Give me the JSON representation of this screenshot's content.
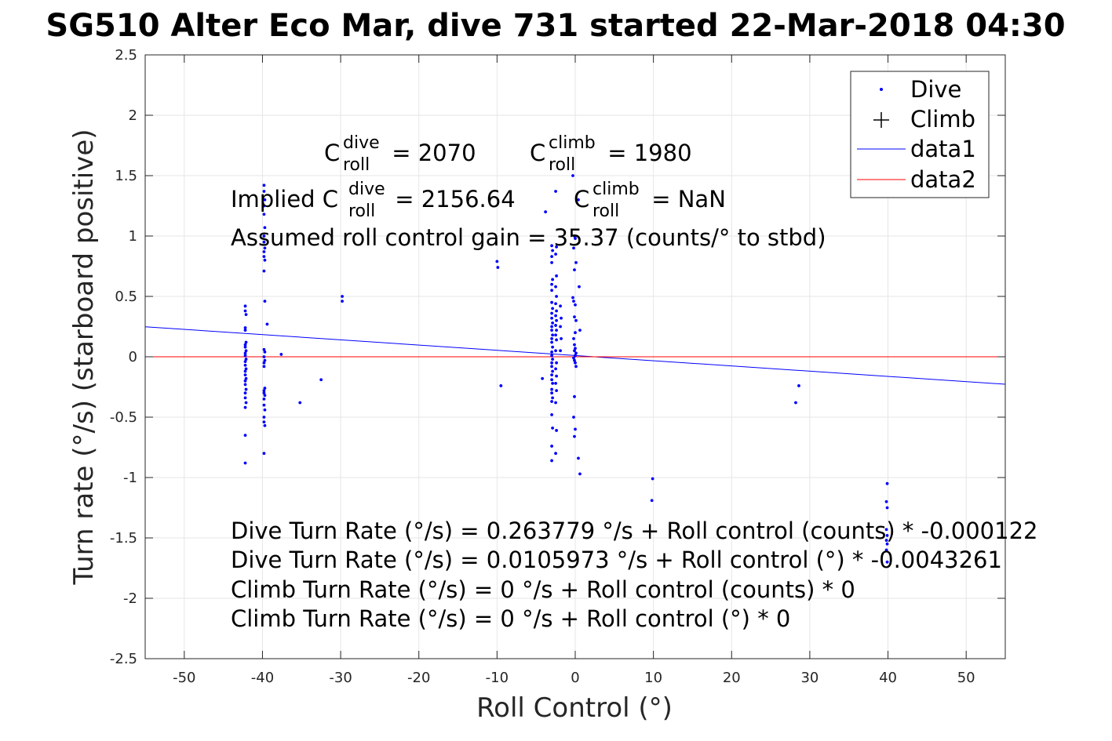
{
  "chart_data": {
    "type": "scatter",
    "title": "SG510 Alter Eco Mar, dive 731 started 22-Mar-2018 04:30",
    "xlabel": "Roll Control (°)",
    "ylabel": "Turn rate (°/s) (starboard positive)",
    "xlim": [
      -55,
      55
    ],
    "ylim": [
      -2.5,
      2.5
    ],
    "xticks": [
      -50,
      -40,
      -30,
      -20,
      -10,
      0,
      10,
      20,
      30,
      40,
      50
    ],
    "yticks": [
      -2.5,
      -2,
      -1.5,
      -1,
      -0.5,
      0,
      0.5,
      1,
      1.5,
      2,
      2.5
    ],
    "grid": true,
    "legend": {
      "placement": "top-right",
      "entries": [
        "Dive",
        "Climb",
        "data1",
        "data2"
      ]
    },
    "colors": {
      "dive": "#0000ff",
      "climb": "#000000",
      "data1": "#0000ff",
      "data2": "#ff0000",
      "grid": "#e6e6e6",
      "axis": "#262626"
    },
    "series": [
      {
        "name": "Dive",
        "marker": "dot",
        "points": [
          [
            -42.2,
            0.42
          ],
          [
            -42.2,
            0.38
          ],
          [
            -42.1,
            0.35
          ],
          [
            -42.2,
            0.24
          ],
          [
            -42.2,
            0.22
          ],
          [
            -42.1,
            0.12
          ],
          [
            -42.2,
            0.1
          ],
          [
            -42.2,
            0.08
          ],
          [
            -42.1,
            0.05
          ],
          [
            -42.2,
            0.03
          ],
          [
            -42.2,
            0.01
          ],
          [
            -42.1,
            -0.02
          ],
          [
            -42.2,
            -0.04
          ],
          [
            -42.2,
            -0.07
          ],
          [
            -42.1,
            -0.1
          ],
          [
            -42.2,
            -0.12
          ],
          [
            -42.2,
            -0.15
          ],
          [
            -42.1,
            -0.18
          ],
          [
            -42.2,
            -0.2
          ],
          [
            -42.2,
            -0.23
          ],
          [
            -42.1,
            -0.27
          ],
          [
            -42.2,
            -0.3
          ],
          [
            -42.2,
            -0.34
          ],
          [
            -42.1,
            -0.38
          ],
          [
            -42.2,
            -0.42
          ],
          [
            -42.2,
            -0.65
          ],
          [
            -42.2,
            -0.88
          ],
          [
            -39.8,
            1.42
          ],
          [
            -39.8,
            1.37
          ],
          [
            -39.7,
            1.3
          ],
          [
            -39.8,
            1.25
          ],
          [
            -39.8,
            1.18
          ],
          [
            -39.7,
            1.07
          ],
          [
            -39.8,
            1.0
          ],
          [
            -39.8,
            0.95
          ],
          [
            -39.7,
            0.9
          ],
          [
            -39.8,
            0.87
          ],
          [
            -39.8,
            0.83
          ],
          [
            -39.7,
            0.8
          ],
          [
            -39.8,
            0.71
          ],
          [
            -39.7,
            0.46
          ],
          [
            -39.4,
            0.27
          ],
          [
            -39.8,
            0.06
          ],
          [
            -39.7,
            0.04
          ],
          [
            -39.8,
            0.0
          ],
          [
            -39.7,
            -0.03
          ],
          [
            -39.8,
            -0.05
          ],
          [
            -39.8,
            -0.08
          ],
          [
            -39.7,
            -0.26
          ],
          [
            -39.8,
            -0.28
          ],
          [
            -39.8,
            -0.3
          ],
          [
            -39.7,
            -0.32
          ],
          [
            -39.8,
            -0.35
          ],
          [
            -39.8,
            -0.4
          ],
          [
            -39.7,
            -0.44
          ],
          [
            -39.8,
            -0.5
          ],
          [
            -39.8,
            -0.54
          ],
          [
            -39.7,
            -0.57
          ],
          [
            -39.8,
            -0.8
          ],
          [
            -37.6,
            0.02
          ],
          [
            -35.2,
            -0.38
          ],
          [
            -32.5,
            -0.19
          ],
          [
            -29.8,
            0.5
          ],
          [
            -29.8,
            0.46
          ],
          [
            -10.0,
            0.79
          ],
          [
            -9.9,
            0.74
          ],
          [
            -9.5,
            -0.24
          ],
          [
            -4.2,
            -0.18
          ],
          [
            -3.8,
            1.2
          ],
          [
            -3.0,
            0.92
          ],
          [
            -2.9,
            0.88
          ],
          [
            -3.0,
            0.83
          ],
          [
            -3.0,
            0.78
          ],
          [
            -2.9,
            0.64
          ],
          [
            -3.0,
            0.6
          ],
          [
            -3.0,
            0.55
          ],
          [
            -3.0,
            0.45
          ],
          [
            -2.9,
            0.4
          ],
          [
            -3.0,
            0.36
          ],
          [
            -3.0,
            0.32
          ],
          [
            -2.9,
            0.28
          ],
          [
            -3.0,
            0.25
          ],
          [
            -3.0,
            0.22
          ],
          [
            -2.9,
            0.18
          ],
          [
            -3.0,
            0.15
          ],
          [
            -3.0,
            0.12
          ],
          [
            -2.9,
            0.08
          ],
          [
            -3.0,
            0.04
          ],
          [
            -3.0,
            0.01
          ],
          [
            -2.9,
            -0.02
          ],
          [
            -3.0,
            -0.05
          ],
          [
            -3.0,
            -0.08
          ],
          [
            -2.9,
            -0.12
          ],
          [
            -3.0,
            -0.15
          ],
          [
            -3.0,
            -0.19
          ],
          [
            -2.9,
            -0.22
          ],
          [
            -3.0,
            -0.27
          ],
          [
            -3.0,
            -0.3
          ],
          [
            -2.9,
            -0.34
          ],
          [
            -3.0,
            -0.37
          ],
          [
            -3.0,
            -0.48
          ],
          [
            -2.9,
            -0.59
          ],
          [
            -3.0,
            -0.74
          ],
          [
            -3.0,
            -0.86
          ],
          [
            -2.5,
            1.37
          ],
          [
            -2.4,
            0.91
          ],
          [
            -2.5,
            0.85
          ],
          [
            -2.4,
            0.67
          ],
          [
            -2.5,
            0.58
          ],
          [
            -2.4,
            0.5
          ],
          [
            -2.5,
            0.44
          ],
          [
            -2.4,
            0.38
          ],
          [
            -2.5,
            0.34
          ],
          [
            -2.4,
            0.3
          ],
          [
            -2.5,
            0.26
          ],
          [
            -2.4,
            0.22
          ],
          [
            -2.5,
            0.18
          ],
          [
            -2.4,
            0.14
          ],
          [
            -2.5,
            0.05
          ],
          [
            -2.4,
            -0.05
          ],
          [
            -2.5,
            -0.1
          ],
          [
            -2.4,
            -0.16
          ],
          [
            -2.5,
            -0.22
          ],
          [
            -2.4,
            -0.28
          ],
          [
            -2.5,
            -0.38
          ],
          [
            -2.4,
            -0.61
          ],
          [
            -2.5,
            -0.8
          ],
          [
            -1.9,
            0.42
          ],
          [
            -1.8,
            0.32
          ],
          [
            -1.9,
            0.25
          ],
          [
            -1.8,
            0.15
          ],
          [
            -1.9,
            0.05
          ],
          [
            -0.3,
            1.5
          ],
          [
            -0.1,
            1.0
          ],
          [
            0.0,
            0.98
          ],
          [
            -0.2,
            0.9
          ],
          [
            -0.1,
            0.72
          ],
          [
            0.1,
            0.78
          ],
          [
            -0.3,
            0.49
          ],
          [
            -0.2,
            0.46
          ],
          [
            0.0,
            0.43
          ],
          [
            -0.1,
            0.33
          ],
          [
            0.1,
            0.3
          ],
          [
            0.0,
            0.2
          ],
          [
            -0.2,
            0.15
          ],
          [
            -0.1,
            0.1
          ],
          [
            0.0,
            0.07
          ],
          [
            -0.1,
            0.05
          ],
          [
            0.1,
            0.03
          ],
          [
            0.0,
            0.01
          ],
          [
            -0.2,
            -0.01
          ],
          [
            -0.1,
            -0.03
          ],
          [
            0.0,
            -0.05
          ],
          [
            0.1,
            -0.08
          ],
          [
            -0.1,
            -0.33
          ],
          [
            -0.2,
            -0.5
          ],
          [
            0.0,
            -0.6
          ],
          [
            -0.1,
            -0.66
          ],
          [
            0.4,
            1.3
          ],
          [
            0.5,
            0.58
          ],
          [
            0.6,
            0.22
          ],
          [
            0.4,
            -0.84
          ],
          [
            0.6,
            -0.97
          ],
          [
            9.9,
            -1.01
          ],
          [
            9.8,
            -1.19
          ],
          [
            28.2,
            -0.38
          ],
          [
            28.6,
            -0.24
          ],
          [
            39.9,
            -1.05
          ],
          [
            39.8,
            -1.2
          ],
          [
            39.9,
            -1.25
          ],
          [
            39.8,
            -1.43
          ],
          [
            39.9,
            -1.48
          ],
          [
            39.8,
            -1.52
          ],
          [
            39.9,
            -1.55
          ],
          [
            39.8,
            -1.6
          ],
          [
            39.9,
            -1.7
          ]
        ]
      },
      {
        "name": "Climb",
        "marker": "plus",
        "points": []
      },
      {
        "name": "data1",
        "line": true,
        "x": [
          -55,
          55
        ],
        "y": [
          0.2485,
          -0.2274
        ]
      },
      {
        "name": "data2",
        "line": true,
        "x": [
          -55,
          55
        ],
        "y": [
          0,
          0
        ]
      }
    ],
    "annotations": {
      "c_roll_dive": {
        "base": "C",
        "sup": "dive",
        "sub": "roll",
        "rest": " = 2070"
      },
      "c_roll_climb": {
        "base": "C",
        "sup": "climb",
        "sub": "roll",
        "rest": " = 1980"
      },
      "implied_dive": {
        "prefix": "Implied C",
        "sup": "dive",
        "sub": "roll",
        "rest": " = 2156.64"
      },
      "implied_climb": {
        "base": "C",
        "sup": "climb",
        "sub": "roll",
        "rest": " = NaN"
      },
      "gain": "Assumed roll control gain = 35.37 (counts/° to stbd)",
      "fit_lines": [
        "Dive Turn Rate (°/s) = 0.263779 °/s + Roll control (counts) * -0.000122",
        "Dive Turn Rate (°/s) = 0.0105973 °/s + Roll control (°) * -0.0043261",
        "Climb Turn Rate (°/s) = 0 °/s + Roll control (counts) * 0",
        "Climb Turn Rate (°/s) = 0 °/s + Roll control (°) * 0"
      ]
    }
  }
}
